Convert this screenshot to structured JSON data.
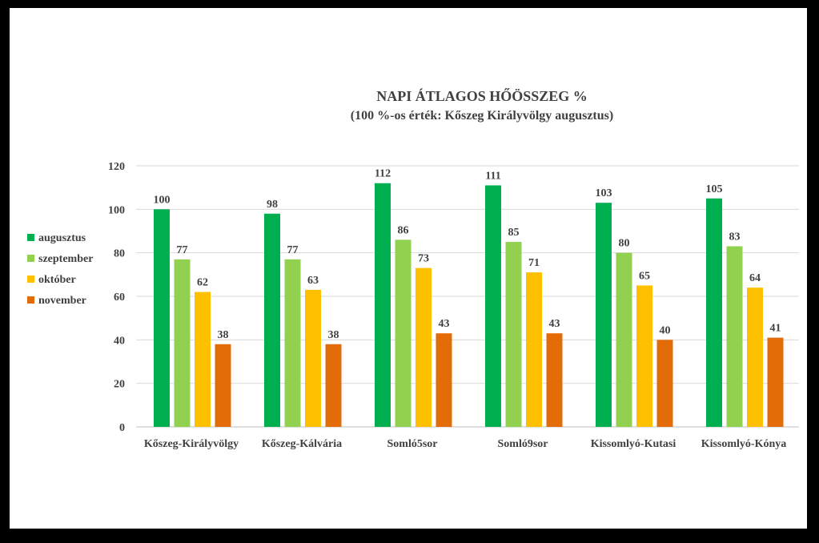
{
  "chart_data": {
    "type": "bar",
    "title": "NAPI ÁTLAGOS HŐÖSSZEG %",
    "subtitle": "(100 %-os érték: Kőszeg Királyvölgy augusztus)",
    "xlabel": "",
    "ylabel": "",
    "ylim": [
      0,
      120
    ],
    "yticks": [
      0,
      20,
      40,
      60,
      80,
      100,
      120
    ],
    "grid": true,
    "legend_position": "left",
    "categories": [
      "Kőszeg-Királyvölgy",
      "Kőszeg-Kálvária",
      "Somló5sor",
      "Somló9sor",
      "Kissomlyó-Kutasi",
      "Kissomlyó-Kónya"
    ],
    "series": [
      {
        "name": "augusztus",
        "color": "#00b050",
        "values": [
          100,
          98,
          112,
          111,
          103,
          105
        ]
      },
      {
        "name": "szeptember",
        "color": "#92d050",
        "values": [
          77,
          77,
          86,
          85,
          80,
          83
        ]
      },
      {
        "name": "október",
        "color": "#ffc000",
        "values": [
          62,
          63,
          73,
          71,
          65,
          64
        ]
      },
      {
        "name": "november",
        "color": "#e36c09",
        "values": [
          38,
          38,
          43,
          43,
          40,
          41
        ]
      }
    ]
  }
}
